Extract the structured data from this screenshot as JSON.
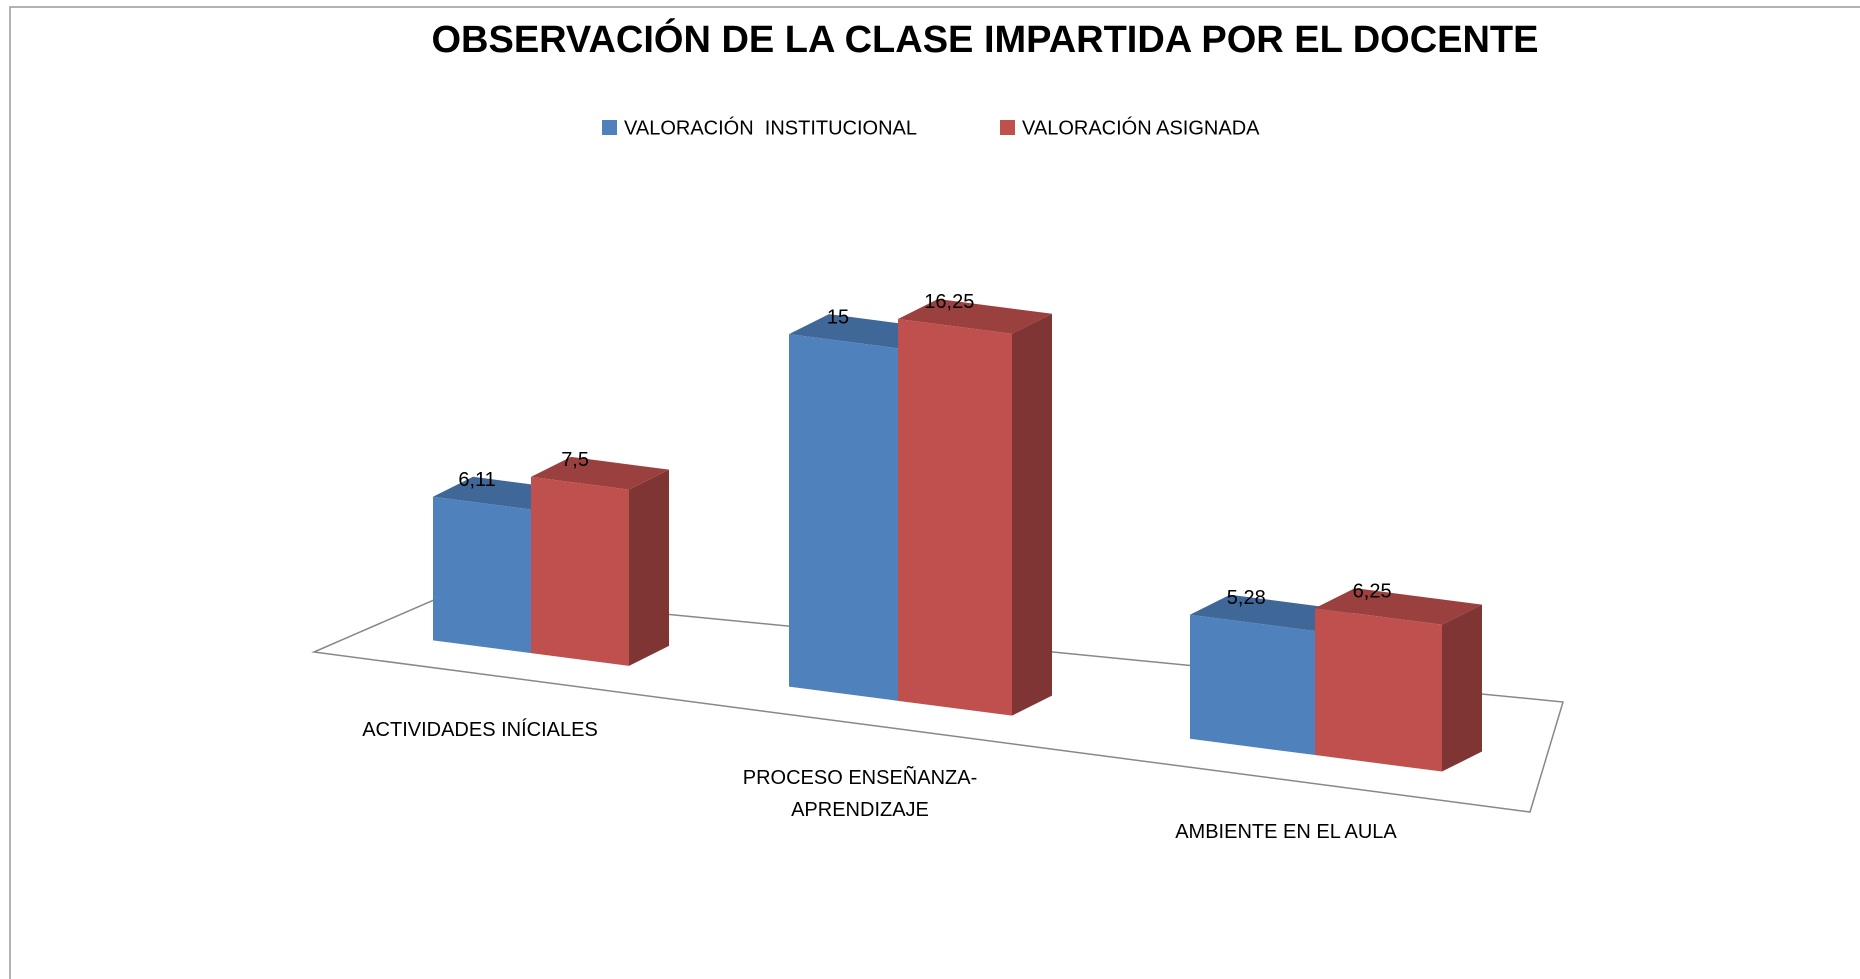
{
  "chart_data": {
    "type": "bar3d",
    "title": "OBSERVACIÓN DE LA CLASE IMPARTIDA POR EL DOCENTE",
    "categories": [
      "ACTIVIDADES INÍCIALES",
      "PROCESO ENSEÑANZA-APRENDIZAJE",
      "AMBIENTE EN EL AULA"
    ],
    "series": [
      {
        "name": "VALORACIÓN  INSTITUCIONAL",
        "color": "#4f81bd",
        "values": [
          6.11,
          15,
          5.28
        ],
        "value_labels": [
          "6,11",
          "15",
          "5,28"
        ]
      },
      {
        "name": "VALORACIÓN ASIGNADA",
        "color": "#c0504d",
        "values": [
          7.5,
          16.25,
          6.25
        ],
        "value_labels": [
          "7,5",
          "16,25",
          "6,25"
        ]
      }
    ],
    "legend": "top"
  }
}
